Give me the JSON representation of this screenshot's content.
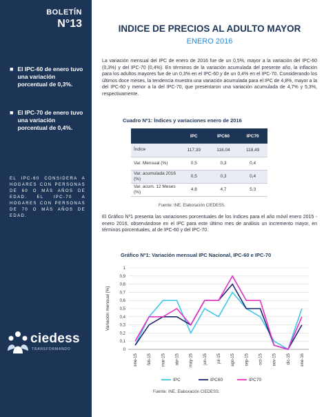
{
  "sidebar": {
    "boletin_label": "BOLETÍN",
    "boletin_number": "N°13",
    "bullets": [
      "El IPC-60 de enero tuvo una variación porcentual de 0,3%.",
      "El IPC-70 de enero tuvo una variación porcentual de 0,4%."
    ],
    "note": "EL IPC-60 CONSIDERA A HOGARES CON PERSONAS DE 60 O MÁS AÑOS DE EDAD. EL IPC-70 A HOGARES CON PERSONAS DE 70 O MÁS AÑOS DE EDAD.",
    "logo_text": "ciedess",
    "logo_sub": "TRANSFORMANDO"
  },
  "header": {
    "title": "INDICE DE PRECIOS AL ADULTO MAYOR",
    "subtitle": "ENERO 2016"
  },
  "paragraph1": "La variación mensual del IPC de enero de 2016 fue de un 0,5%, mayor a la variación del IPC-60 (0,3%) y del IPC-70 (0,4%). En términos de la variación acumulada del presente año, la inflación para los adultos mayores fue de un 0,3% en el IPC-60 y de un 0,4% en el IPC-70. Considerando los últimos doce meses, la tendencia muestra una variación acumulada para el IPC de 4,8%, mayor a la del IPC-60 y menor a la del IPC-70, que presentaron una variación acumulada de 4,7% y 5,3%, respectivamente.",
  "table": {
    "title": "Cuadro Nº1: Índices y variaciones enero de 2016",
    "columns": [
      "",
      "IPC",
      "IPC60",
      "IPC70"
    ],
    "rows": [
      [
        "Índice",
        "117,39",
        "118,04",
        "118,49"
      ],
      [
        "Var. Mensual (%)",
        "0,5",
        "0,3",
        "0,4"
      ],
      [
        "Var. acumulada 2016 (%)",
        "0,5",
        "0,3",
        "0,4"
      ],
      [
        "Var. acum. 12 Meses (%)",
        "4,8",
        "4,7",
        "5,3"
      ]
    ],
    "source": "Fuente: INE, Elaboración CIEDESS."
  },
  "paragraph2": "El Gráfico Nº1 presenta las variaciones porcentuales de los índices para el año móvil enero 2015 - enero 2016, observándose en el IPC para este último mes de análisis un incremento mayor, en términos porcentuales, al de IPC-60 y del IPC-70.",
  "chart_data": {
    "type": "line",
    "title": "Gráfico Nº1: Variación mensual IPC Nacional, IPC-60 e IPC-70",
    "ylabel": "Variación mensual [%]",
    "xlabel": "",
    "ylim": [
      0,
      1
    ],
    "yticks": [
      "0",
      "0,1",
      "0,2",
      "0,3",
      "0,4",
      "0,5",
      "0,6",
      "0,7",
      "0,8",
      "0,9",
      "1"
    ],
    "categories": [
      "ene-15",
      "feb-15",
      "mar-15",
      "abr-15",
      "may-15",
      "jun-15",
      "jul-15",
      "ago-15",
      "sep-15",
      "oct-15",
      "nov-15",
      "dic-15",
      "ene-16"
    ],
    "series": [
      {
        "name": "IPC",
        "color": "#3fc7e6",
        "values": [
          0.05,
          0.4,
          0.6,
          0.6,
          0.2,
          0.5,
          0.4,
          0.7,
          0.5,
          0.4,
          0.1,
          0.0,
          0.5
        ]
      },
      {
        "name": "IPC60",
        "color": "#1c2470",
        "values": [
          0.05,
          0.3,
          0.4,
          0.4,
          0.3,
          0.6,
          0.6,
          0.8,
          0.5,
          0.5,
          0.05,
          0.0,
          0.3
        ]
      },
      {
        "name": "IPC70",
        "color": "#e233c9",
        "values": [
          0.1,
          0.4,
          0.4,
          0.5,
          0.3,
          0.6,
          0.6,
          0.9,
          0.6,
          0.6,
          0.05,
          0.0,
          0.4
        ]
      }
    ],
    "legend": "bottom",
    "grid": true
  },
  "chart_source": "Fuente: INE, Elaboración CIEDESS."
}
